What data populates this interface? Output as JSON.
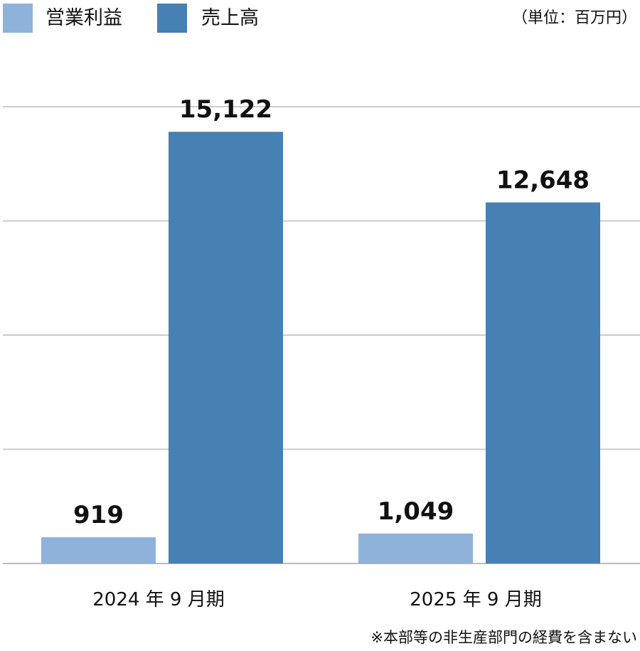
{
  "legend": [
    {
      "label": "営業利益",
      "color": "#8fb2da"
    },
    {
      "label": "売上高",
      "color": "#4780b2"
    }
  ],
  "unit_label": "（単位：百万円）",
  "footnote": "※本部等の非生産部門の経費を含まない",
  "chart_data": {
    "type": "bar",
    "categories": [
      "2024 年 9 月期",
      "2025 年 9 月期"
    ],
    "series": [
      {
        "name": "営業利益",
        "color": "#8fb2da",
        "values": [
          919,
          1049
        ],
        "value_labels": [
          "919",
          "1,049"
        ]
      },
      {
        "name": "売上高",
        "color": "#4780b2",
        "values": [
          15122,
          12648
        ],
        "value_labels": [
          "15,122",
          "12,648"
        ]
      }
    ],
    "ylim": [
      0,
      16000
    ],
    "grid": true,
    "legend_position": "top-left"
  }
}
